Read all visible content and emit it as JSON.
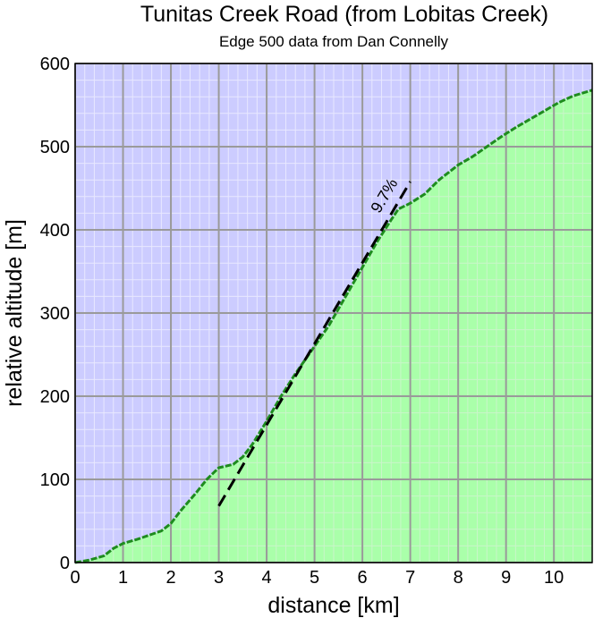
{
  "chart_data": {
    "type": "area",
    "title": "Tunitas Creek Road (from Lobitas Creek)",
    "subtitle": "Edge 500 data from Dan Connelly",
    "xlabel": "distance [km]",
    "ylabel": "relative altitude [m]",
    "xlim": [
      0,
      10.8
    ],
    "ylim": [
      0,
      600
    ],
    "xticks": [
      0,
      1,
      2,
      3,
      4,
      5,
      6,
      7,
      8,
      9,
      10
    ],
    "yticks": [
      0,
      100,
      200,
      300,
      400,
      500,
      600
    ],
    "grid": true,
    "legend": "none",
    "colors": {
      "above": "#ccccff",
      "below": "#aaffaa",
      "profile_line": "#1e8c1e",
      "grid_major": "#9a9a9a",
      "grid_minor": "#e8e8ff",
      "fit_line": "#000000"
    },
    "series": [
      {
        "x": [
          0,
          0.3,
          0.6,
          0.8,
          1.0,
          1.3,
          1.6,
          1.8,
          2.0,
          2.2,
          2.5,
          2.75,
          3.0,
          3.3,
          3.5,
          3.7,
          4.0,
          4.3,
          4.6,
          5.0,
          5.3,
          5.6,
          6.0,
          6.3,
          6.6,
          6.75,
          7.0,
          7.3,
          7.6,
          8.0,
          8.3,
          8.6,
          8.9,
          9.2,
          9.5,
          9.8,
          10.1,
          10.4,
          10.8
        ],
        "values": [
          0,
          3,
          8,
          17,
          23,
          28,
          34,
          38,
          47,
          62,
          82,
          100,
          114,
          118,
          127,
          142,
          170,
          200,
          227,
          260,
          285,
          315,
          355,
          385,
          412,
          425,
          432,
          443,
          460,
          478,
          488,
          500,
          512,
          523,
          533,
          543,
          553,
          561,
          568
        ]
      }
    ],
    "fit": {
      "label": "9.7%",
      "x": [
        3.0,
        7.0
      ],
      "y": [
        68,
        458
      ]
    }
  }
}
